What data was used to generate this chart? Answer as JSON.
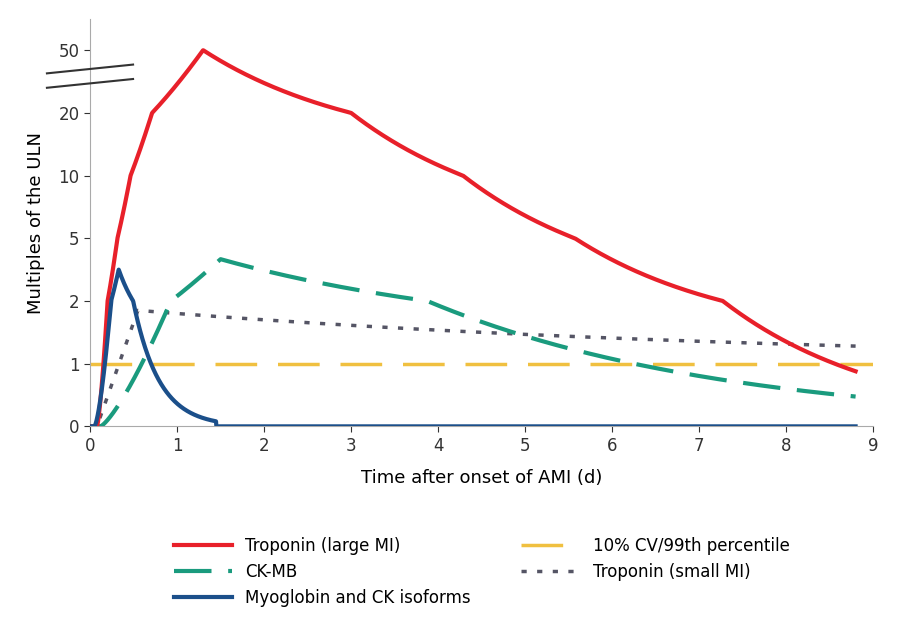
{
  "title": "",
  "xlabel": "Time after onset of AMI (d)",
  "ylabel": "Multiples of the ULN",
  "xlim": [
    0,
    8.8
  ],
  "ylim": [
    0.08,
    70
  ],
  "yticks": [
    0,
    1,
    2,
    5,
    10,
    20,
    50
  ],
  "xticks": [
    0,
    1,
    2,
    3,
    4,
    5,
    6,
    7,
    8,
    9
  ],
  "background_color": "#ffffff",
  "series": {
    "troponin_large": {
      "label": "Troponin (large MI)",
      "color": "#e8202a",
      "linestyle": "solid",
      "linewidth": 3.0
    },
    "ckmb": {
      "label": "CK-MB",
      "color": "#1a9b7e",
      "linestyle": "dashed",
      "linewidth": 3.0
    },
    "myoglobin": {
      "label": "Myoglobin and CK isoforms",
      "color": "#1b4f8a",
      "linestyle": "solid",
      "linewidth": 3.0
    },
    "percentile_line": {
      "label": "10% CV/99th percentile",
      "color": "#f0c040",
      "linestyle": "dashed",
      "linewidth": 2.5,
      "y_value": 1.0
    },
    "troponin_small": {
      "label": "Troponin (small MI)",
      "color": "#555565",
      "linestyle": "dotted",
      "linewidth": 2.5
    }
  },
  "legend_fontsize": 12,
  "axis_fontsize": 13,
  "tick_fontsize": 12
}
